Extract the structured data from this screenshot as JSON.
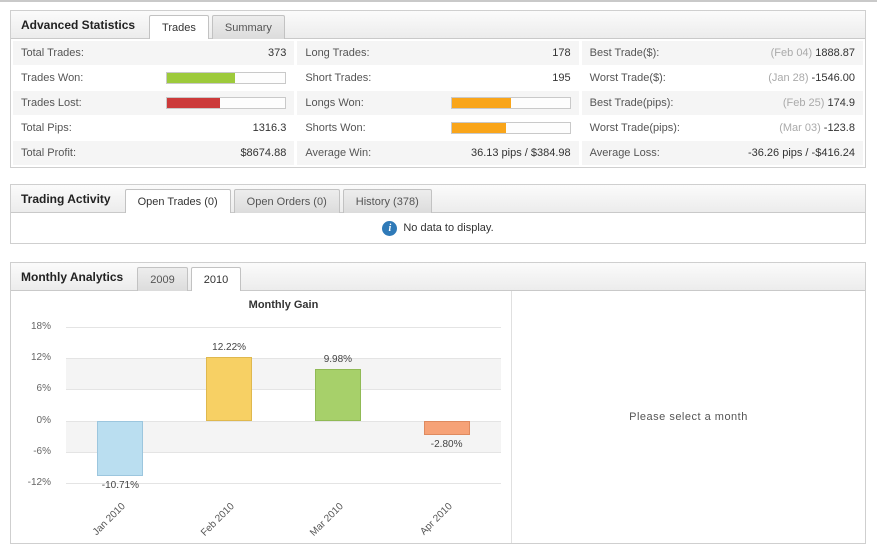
{
  "advanced_statistics": {
    "title": "Advanced Statistics",
    "tabs": [
      {
        "label": "Trades",
        "active": true
      },
      {
        "label": "Summary",
        "active": false
      }
    ],
    "col1": {
      "row1": {
        "label": "Total Trades:",
        "value": "373"
      },
      "row2": {
        "label": "Trades Won:",
        "bar": {
          "pct": 57,
          "color": "#9dca3b"
        }
      },
      "row3": {
        "label": "Trades Lost:",
        "bar": {
          "pct": 45,
          "color": "#cc3a3a"
        }
      },
      "row4": {
        "label": "Total Pips:",
        "value": "1316.3"
      },
      "row5": {
        "label": "Total Profit:",
        "value": "$8674.88"
      }
    },
    "col2": {
      "row1": {
        "label": "Long Trades:",
        "value": "178"
      },
      "row2": {
        "label": "Short Trades:",
        "value": "195"
      },
      "row3": {
        "label": "Longs Won:",
        "bar": {
          "pct": 50,
          "color": "#f9a51a"
        }
      },
      "row4": {
        "label": "Shorts Won:",
        "bar": {
          "pct": 46,
          "color": "#f9a51a"
        }
      },
      "row5": {
        "label": "Average Win:",
        "value": "36.13 pips / $384.98"
      }
    },
    "col3": {
      "row1": {
        "label": "Best Trade($):",
        "date": "(Feb 04)",
        "value": "1888.87"
      },
      "row2": {
        "label": "Worst Trade($):",
        "date": "(Jan 28)",
        "value": "-1546.00"
      },
      "row3": {
        "label": "Best Trade(pips):",
        "date": "(Feb 25)",
        "value": "174.9"
      },
      "row4": {
        "label": "Worst Trade(pips):",
        "date": "(Mar 03)",
        "value": "-123.8"
      },
      "row5": {
        "label": "Average Loss:",
        "value": "-36.26 pips / -$416.24"
      }
    }
  },
  "trading_activity": {
    "title": "Trading Activity",
    "tabs": [
      {
        "label": "Open Trades (0)",
        "active": true
      },
      {
        "label": "Open Orders (0)",
        "active": false
      },
      {
        "label": "History (378)",
        "active": false
      }
    ],
    "empty_message": "No data to display.",
    "info_icon_color": "#2f7ab8"
  },
  "monthly_analytics": {
    "title": "Monthly Analytics",
    "tabs": [
      {
        "label": "2009",
        "active": false
      },
      {
        "label": "2010",
        "active": true
      }
    ],
    "select_message": "Please select a month"
  },
  "chart_data": {
    "type": "bar",
    "title": "Monthly Gain",
    "categories": [
      "Jan 2010",
      "Feb 2010",
      "Mar 2010",
      "Apr 2010"
    ],
    "values": [
      -10.71,
      12.22,
      9.98,
      -2.8
    ],
    "value_labels": [
      "-10.71%",
      "12.22%",
      "9.98%",
      "-2.80%"
    ],
    "bar_colors": [
      "#badef0",
      "#f7d064",
      "#a7d06a",
      "#f6a277"
    ],
    "bar_border_colors": [
      "#9cc6de",
      "#dfb84e",
      "#90ba55",
      "#de8a5f"
    ],
    "yticks": [
      18,
      12,
      6,
      0,
      -6,
      -12
    ],
    "ytick_labels": [
      "18%",
      "12%",
      "6%",
      "0%",
      "-6%",
      "-12%"
    ],
    "ylim": [
      -14,
      20
    ],
    "xlabel": "",
    "ylabel": "",
    "grid": true,
    "legend": false,
    "band_color": "#f4f4f4"
  }
}
